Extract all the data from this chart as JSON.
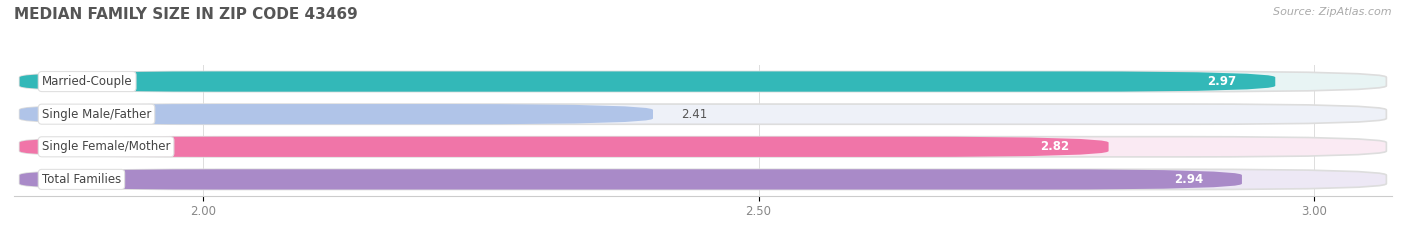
{
  "title": "MEDIAN FAMILY SIZE IN ZIP CODE 43469",
  "source": "Source: ZipAtlas.com",
  "categories": [
    "Married-Couple",
    "Single Male/Father",
    "Single Female/Mother",
    "Total Families"
  ],
  "values": [
    2.97,
    2.41,
    2.82,
    2.94
  ],
  "bar_colors": [
    "#33b8b8",
    "#b0c4e8",
    "#f075a8",
    "#a98ac8"
  ],
  "bar_bg_colors": [
    "#e8f4f4",
    "#eef1f8",
    "#faeaf3",
    "#ede8f5"
  ],
  "xlim_min": 1.83,
  "xlim_max": 3.07,
  "xticks": [
    2.0,
    2.5,
    3.0
  ],
  "xtick_labels": [
    "2.00",
    "2.50",
    "3.00"
  ],
  "title_fontsize": 11,
  "label_fontsize": 8.5,
  "value_fontsize": 8.5,
  "source_fontsize": 8,
  "background_color": "#ffffff"
}
